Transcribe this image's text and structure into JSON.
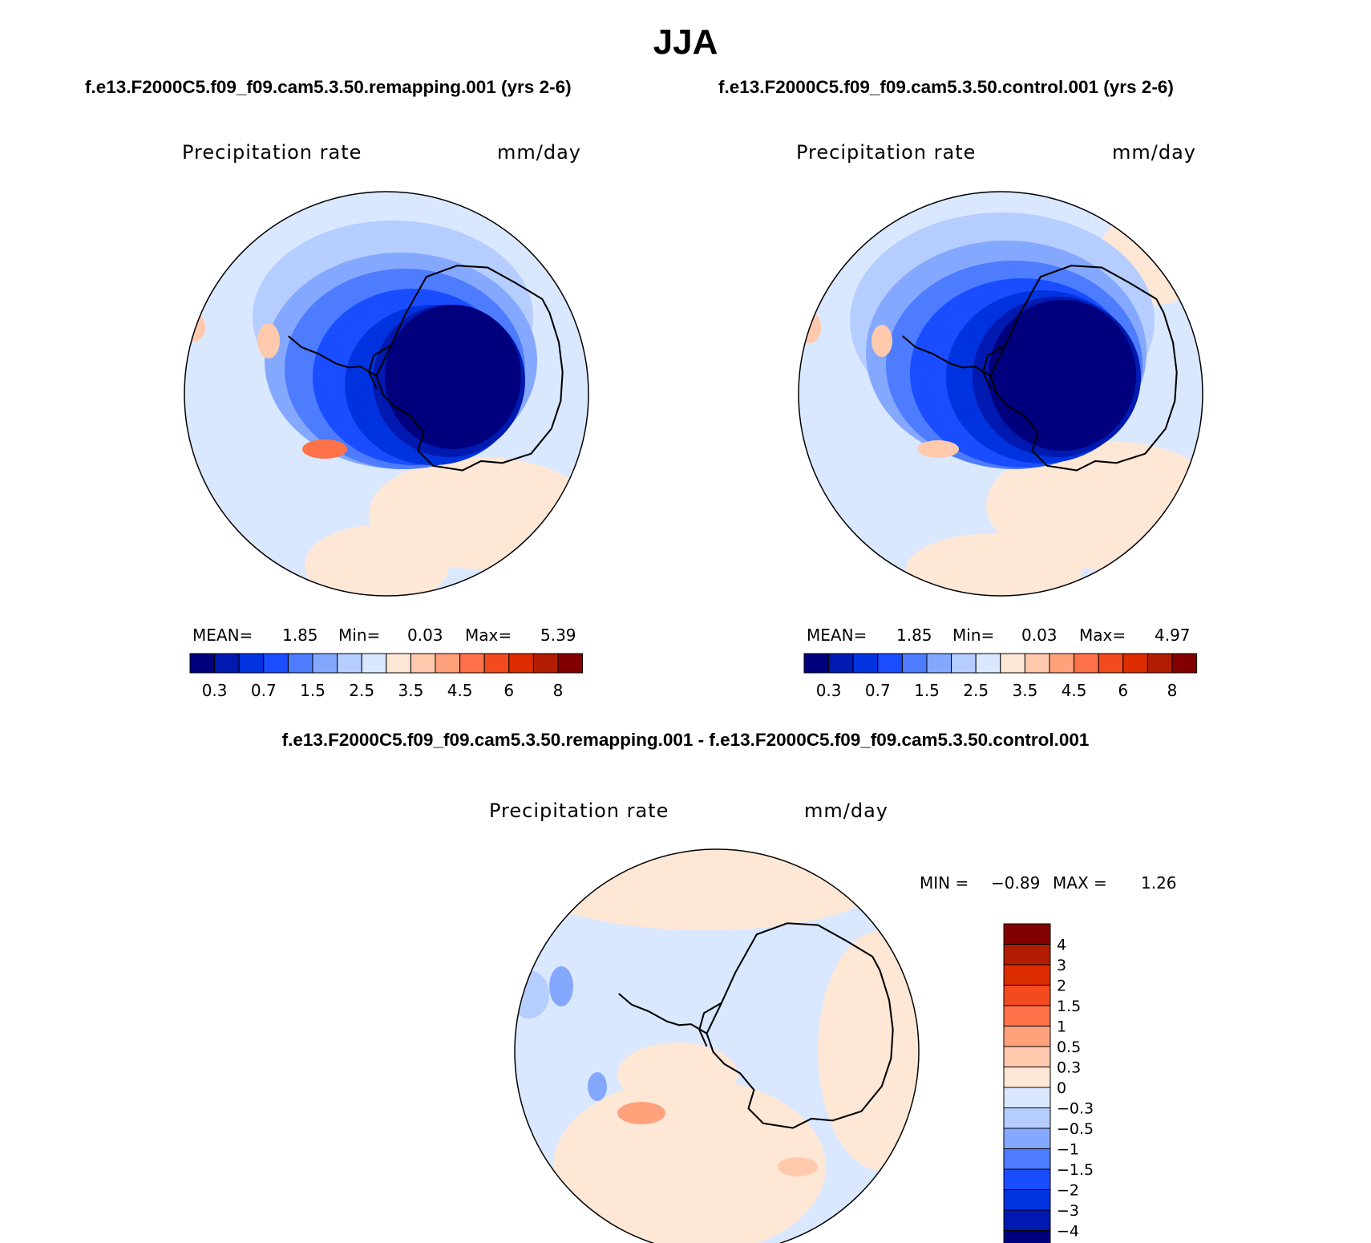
{
  "title": "JJA",
  "panels": [
    {
      "case_title": "f.e13.F2000C5.f09_f09.cam5.3.50.remapping.001 (yrs 2-6)",
      "variable": "Precipitation rate",
      "units": "mm/day",
      "mean_label": "MEAN=",
      "mean": "1.85",
      "min_label": "Min=",
      "min": "0.03",
      "max_label": "Max=",
      "max": "5.39"
    },
    {
      "case_title": "f.e13.F2000C5.f09_f09.cam5.3.50.control.001 (yrs 2-6)",
      "variable": "Precipitation rate",
      "units": "mm/day",
      "mean_label": "MEAN=",
      "mean": "1.85",
      "min_label": "Min=",
      "min": "0.03",
      "max_label": "Max=",
      "max": "4.97"
    }
  ],
  "diff": {
    "title": "f.e13.F2000C5.f09_f09.cam5.3.50.remapping.001 - f.e13.F2000C5.f09_f09.cam5.3.50.control.001",
    "variable": "Precipitation rate",
    "units": "mm/day",
    "min_label": "MIN =",
    "min": "−0.89",
    "max_label": "MAX =",
    "max": "1.26"
  },
  "colorbar_abs": {
    "colors": [
      "#00007f",
      "#0019b0",
      "#0033e0",
      "#1a4dff",
      "#4d7cff",
      "#85a8ff",
      "#b5cdff",
      "#dae8ff",
      "#ffe7d6",
      "#ffc9ad",
      "#ffa27c",
      "#ff7148",
      "#f34a1e",
      "#dd2d00",
      "#b21c00",
      "#830000"
    ],
    "tick_labels": [
      "0.3",
      "0.7",
      "1.5",
      "2.5",
      "3.5",
      "4.5",
      "6",
      "8"
    ]
  },
  "colorbar_diff": {
    "colors": [
      "#00007f",
      "#0019b0",
      "#0033e0",
      "#1a4dff",
      "#4d7cff",
      "#85a8ff",
      "#b5cdff",
      "#dae8ff",
      "#ffe7d6",
      "#ffc9ad",
      "#ffa27c",
      "#ff7148",
      "#f34a1e",
      "#dd2d00",
      "#b21c00",
      "#830000"
    ],
    "tick_labels": [
      "−4",
      "−3",
      "−2",
      "−1.5",
      "−1",
      "−0.5",
      "−0.3",
      "0",
      "0.3",
      "0.5",
      "1",
      "1.5",
      "2",
      "3",
      "4"
    ]
  },
  "chart_data": {
    "type": "heatmap",
    "title": "JJA",
    "variable": "Precipitation rate",
    "units": "mm/day",
    "projection": "south polar stereographic",
    "contour_levels_abs": [
      0.3,
      0.7,
      1.5,
      2.5,
      3.5,
      4.5,
      6,
      8
    ],
    "contour_levels_diff": [
      -4,
      -3,
      -2,
      -1.5,
      -1,
      -0.5,
      -0.3,
      0,
      0.3,
      0.5,
      1,
      1.5,
      2,
      3,
      4
    ],
    "series": [
      {
        "name": "f.e13.F2000C5.f09_f09.cam5.3.50.remapping.001 (yrs 2-6)",
        "mean": 1.85,
        "min": 0.03,
        "max": 5.39
      },
      {
        "name": "f.e13.F2000C5.f09_f09.cam5.3.50.control.001 (yrs 2-6)",
        "mean": 1.85,
        "min": 0.03,
        "max": 4.97
      },
      {
        "name": "remapping.001 - control.001",
        "min": -0.89,
        "max": 1.26
      }
    ]
  }
}
